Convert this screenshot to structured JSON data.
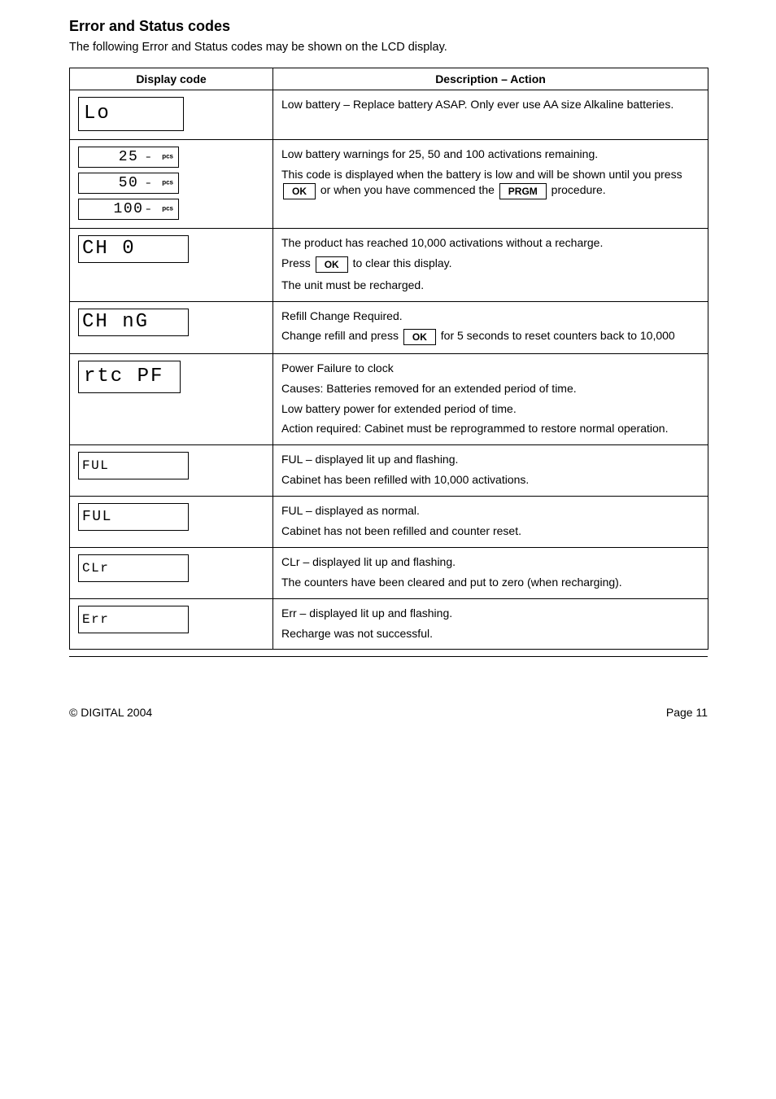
{
  "heading": "Error and Status codes",
  "intro": "The following Error and Status codes may be shown on the LCD display.",
  "columns": {
    "left": "Display code",
    "right": "Description – Action"
  },
  "rows": [
    {
      "left": {
        "kind": "lcd_large",
        "text": "Lo"
      },
      "right": {
        "paras": [
          "Low battery – Replace battery ASAP. Only ever use AA size Alkaline batteries."
        ]
      }
    },
    {
      "left": {
        "kind": "stack3",
        "items": [
          {
            "text": "25",
            "dash": "–",
            "suffix": "pcs"
          },
          {
            "text": "50",
            "dash": "–",
            "suffix": "pcs"
          },
          {
            "text": "100",
            "dash": "–",
            "suffix": "pcs"
          }
        ]
      },
      "right": {
        "paras": [
          "Low battery warnings for 25, 50 and 100 activations remaining.",
          "This code is displayed when the battery is low and will be shown until you press"
        ],
        "trailing_keys": [
          {
            "before": "",
            "key": "OK",
            "after": " or when you have commenced the "
          },
          {
            "key": "PRGM",
            "after": " procedure."
          }
        ]
      }
    },
    {
      "left": {
        "kind": "lcd_wide",
        "text": "CH  0"
      },
      "right": {
        "paras": [
          "The product has reached 10,000 activations without a recharge.",
          "Press"
        ],
        "trailing_keys": [
          {
            "key": "OK",
            "after": " to clear this display."
          }
        ],
        "paras2": [
          "The unit must be recharged."
        ]
      }
    },
    {
      "left": {
        "kind": "lcd_wide",
        "text": "CH nG"
      },
      "right": {
        "paras": [
          "Refill Change Required.",
          "Change refill and press"
        ],
        "trailing_keys": [
          {
            "key": "OK",
            "after": "  for 5 seconds to reset counters back to 10,000"
          }
        ]
      }
    },
    {
      "left": {
        "kind": "lcd_reg",
        "text": "rtc PF"
      },
      "right": {
        "paras": [
          "Power Failure to clock",
          "Causes: Batteries removed for an extended period of time.",
          "Low battery power for extended period of time.",
          "Action required: Cabinet must be reprogrammed to restore normal operation."
        ]
      }
    },
    {
      "left": {
        "kind": "lcd_wide_flash",
        "text": "FUL"
      },
      "right": {
        "paras": [
          "FUL – displayed lit up and flashing.",
          "Cabinet has been refilled with 10,000 activations."
        ]
      }
    },
    {
      "left": {
        "kind": "lcd_wide",
        "text": "FUL",
        "style": "md"
      },
      "right": {
        "paras": [
          "FUL – displayed as normal.",
          "Cabinet has not been refilled and counter reset."
        ]
      }
    },
    {
      "left": {
        "kind": "lcd_wide_flash",
        "text": "CLr"
      },
      "right": {
        "paras": [
          "CLr – displayed lit up and flashing.",
          "The counters have been cleared and put to zero (when recharging)."
        ]
      }
    },
    {
      "left": {
        "kind": "lcd_wide_flash",
        "text": "Err"
      },
      "right": {
        "paras": [
          "Err – displayed lit up and flashing.",
          "Recharge was not successful."
        ]
      }
    }
  ],
  "footer": {
    "left": "© DIGITAL 2004",
    "right": "Page 11"
  }
}
